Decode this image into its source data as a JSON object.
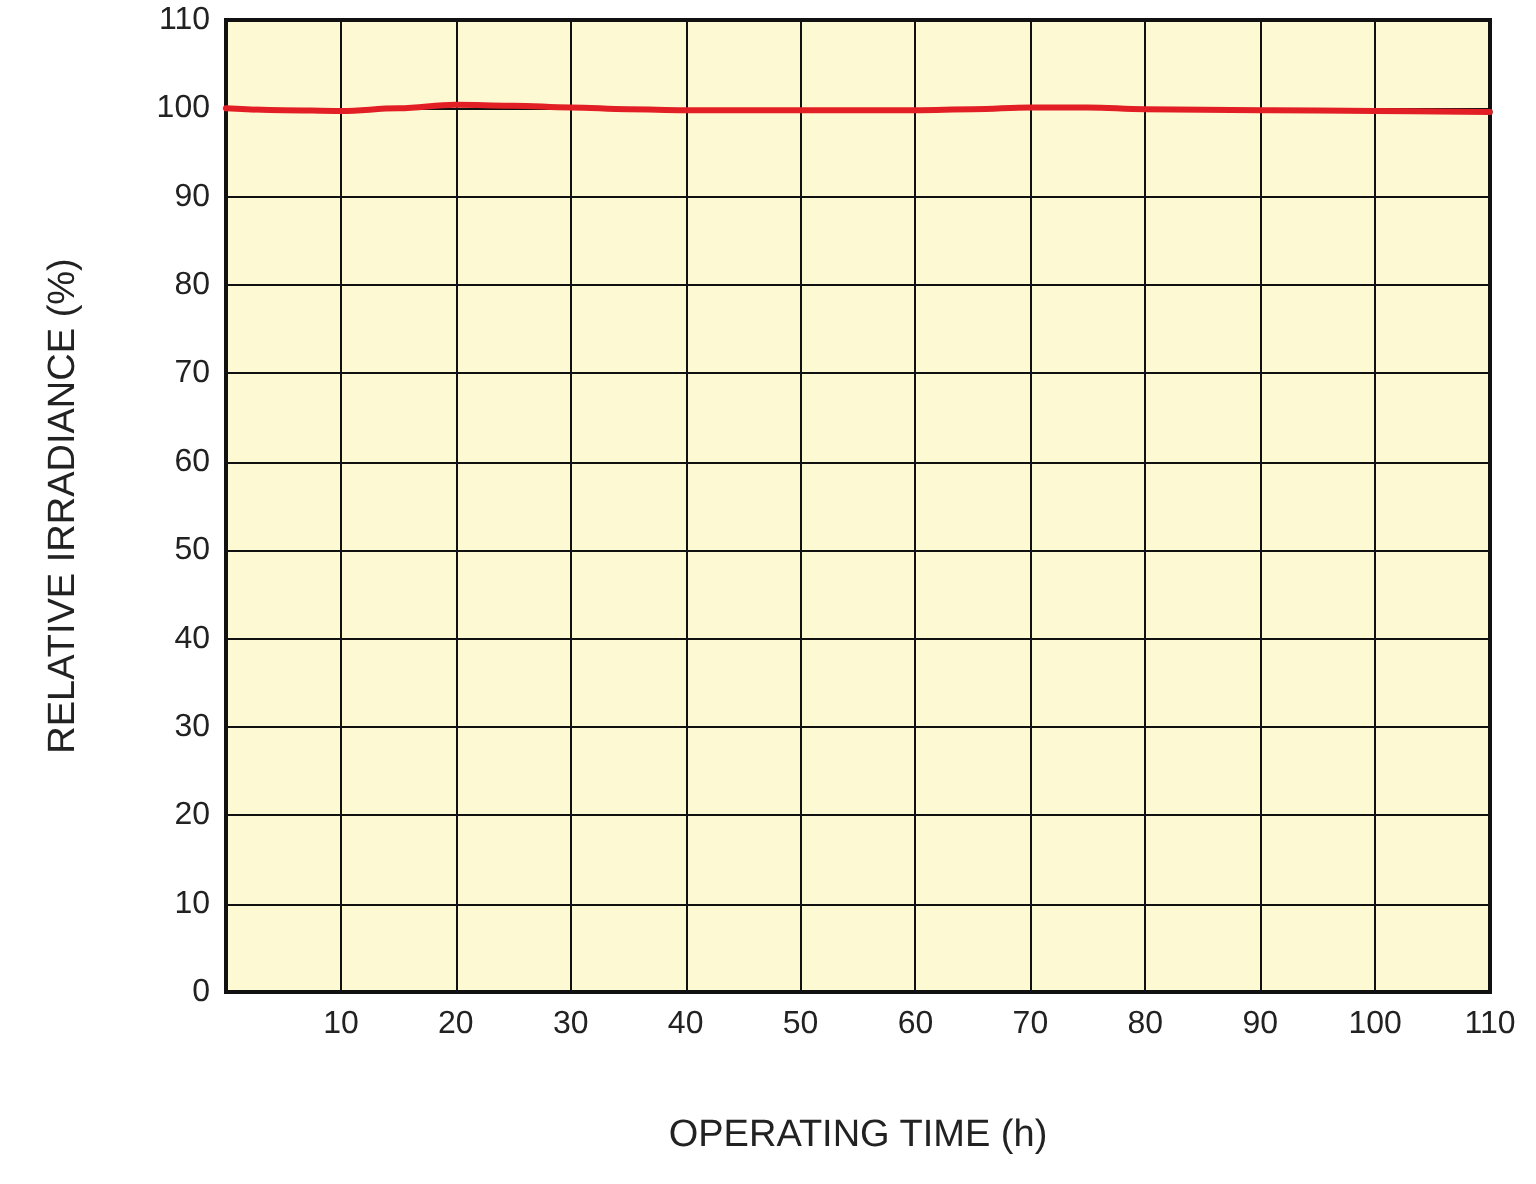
{
  "chart_data": {
    "type": "line",
    "xlabel": "OPERATING TIME (h)",
    "ylabel": "RELATIVE IRRADIANCE (%)",
    "series": [
      {
        "color": "#e31f26",
        "x": [
          0,
          5,
          10,
          15,
          20,
          25,
          30,
          35,
          40,
          50,
          60,
          65,
          70,
          75,
          80,
          90,
          100,
          110
        ],
        "values": [
          100,
          99.8,
          99.7,
          100,
          100.4,
          100.3,
          100.1,
          99.9,
          99.8,
          99.8,
          99.8,
          99.9,
          100.1,
          100.1,
          99.9,
          99.8,
          99.7,
          99.6
        ]
      }
    ],
    "xlim": [
      0,
      110
    ],
    "xticks": [
      {
        "value": 0,
        "label": null
      },
      10,
      20,
      30,
      40,
      50,
      60,
      70,
      80,
      90,
      100,
      110
    ],
    "ylim": [
      0,
      110
    ],
    "yticks": [
      0,
      10,
      20,
      30,
      40,
      50,
      60,
      70,
      80,
      90,
      100,
      110
    ],
    "grid": true,
    "marker": "none",
    "line_style": "solid"
  }
}
